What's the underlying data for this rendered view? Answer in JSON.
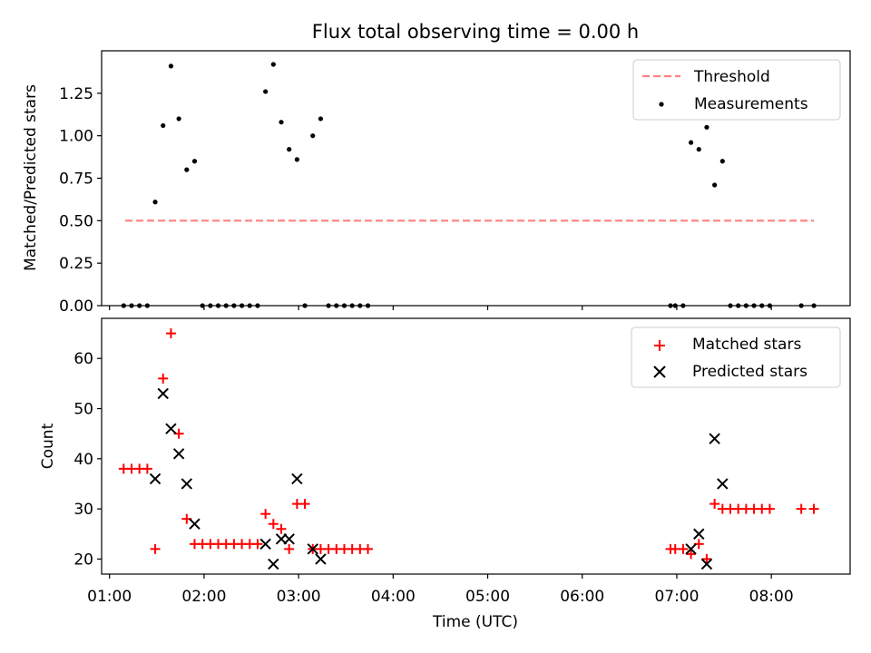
{
  "chart_data": [
    {
      "type": "scatter",
      "title": "Flux total observing time = 0.00 h",
      "xlabel": "",
      "ylabel": "Matched/Predicted stars",
      "xlim": [
        "00:55",
        "08:50"
      ],
      "ylim": [
        0,
        1.5
      ],
      "yticks": [
        "0.00",
        "0.25",
        "0.50",
        "0.75",
        "1.00",
        "1.25"
      ],
      "grid": false,
      "legend_position": "top-right",
      "legend": [
        "Threshold",
        "Measurements"
      ],
      "threshold": {
        "name": "Threshold",
        "value": 0.5,
        "x_start": "01:10",
        "x_end": "08:27",
        "color": "#ff7f7f"
      },
      "series": [
        {
          "name": "Measurements",
          "x": [
            "01:09",
            "01:14",
            "01:19",
            "01:24",
            "01:29",
            "01:34",
            "01:39",
            "01:44",
            "01:49",
            "01:54",
            "01:59",
            "02:04",
            "02:09",
            "02:14",
            "02:19",
            "02:24",
            "02:29",
            "02:34",
            "02:39",
            "02:44",
            "02:49",
            "02:54",
            "02:59",
            "03:04",
            "03:09",
            "03:14",
            "03:19",
            "03:24",
            "03:29",
            "03:34",
            "03:39",
            "03:44",
            "06:56",
            "06:59",
            "07:04",
            "07:09",
            "07:14",
            "07:19",
            "07:24",
            "07:29",
            "07:34",
            "07:39",
            "07:44",
            "07:49",
            "07:54",
            "07:59",
            "08:19",
            "08:27"
          ],
          "y": [
            0,
            0,
            0,
            0,
            0.61,
            1.06,
            1.41,
            1.1,
            0.8,
            0.85,
            0,
            0,
            0,
            0,
            0,
            0,
            0,
            0,
            1.26,
            1.42,
            1.08,
            0.92,
            0.86,
            0,
            1.0,
            1.1,
            0,
            0,
            0,
            0,
            0,
            0,
            0,
            0,
            0,
            0.96,
            0.92,
            1.05,
            0.71,
            0.85,
            0,
            0,
            0,
            0,
            0,
            0,
            0,
            0
          ],
          "color": "#000000"
        }
      ]
    },
    {
      "type": "scatter",
      "title": "",
      "xlabel": "Time (UTC)",
      "ylabel": "Count",
      "xlim": [
        "00:55",
        "08:50"
      ],
      "ylim": [
        17,
        68
      ],
      "xticks": [
        "01:00",
        "02:00",
        "03:00",
        "04:00",
        "05:00",
        "06:00",
        "07:00",
        "08:00"
      ],
      "yticks": [
        "20",
        "30",
        "40",
        "50",
        "60"
      ],
      "grid": false,
      "legend_position": "top-right",
      "legend": [
        "Matched stars",
        "Predicted stars"
      ],
      "series": [
        {
          "name": "Matched stars",
          "marker": "plus",
          "color": "#ff0000",
          "x": [
            "01:09",
            "01:14",
            "01:19",
            "01:24",
            "01:29",
            "01:34",
            "01:39",
            "01:44",
            "01:49",
            "01:54",
            "01:59",
            "02:04",
            "02:09",
            "02:14",
            "02:19",
            "02:24",
            "02:29",
            "02:34",
            "02:39",
            "02:44",
            "02:49",
            "02:54",
            "02:59",
            "03:04",
            "03:09",
            "03:14",
            "03:19",
            "03:24",
            "03:29",
            "03:34",
            "03:39",
            "03:44",
            "06:56",
            "06:59",
            "07:04",
            "07:09",
            "07:14",
            "07:19",
            "07:24",
            "07:29",
            "07:34",
            "07:39",
            "07:44",
            "07:49",
            "07:54",
            "07:59",
            "08:19",
            "08:27"
          ],
          "y": [
            38,
            38,
            38,
            38,
            22,
            56,
            65,
            45,
            28,
            23,
            23,
            23,
            23,
            23,
            23,
            23,
            23,
            23,
            29,
            27,
            26,
            22,
            31,
            31,
            22,
            22,
            22,
            22,
            22,
            22,
            22,
            22,
            22,
            22,
            22,
            21,
            23,
            20,
            31,
            30,
            30,
            30,
            30,
            30,
            30,
            30,
            30,
            30
          ]
        },
        {
          "name": "Predicted stars",
          "marker": "x",
          "color": "#000000",
          "x": [
            "01:29",
            "01:34",
            "01:39",
            "01:44",
            "01:49",
            "01:54",
            "02:39",
            "02:44",
            "02:49",
            "02:54",
            "02:59",
            "03:09",
            "03:14",
            "07:09",
            "07:14",
            "07:19",
            "07:24",
            "07:29"
          ],
          "y": [
            36,
            53,
            46,
            41,
            35,
            27,
            23,
            19,
            24,
            24,
            36,
            22,
            20,
            22,
            25,
            19,
            44,
            35
          ]
        }
      ]
    }
  ]
}
